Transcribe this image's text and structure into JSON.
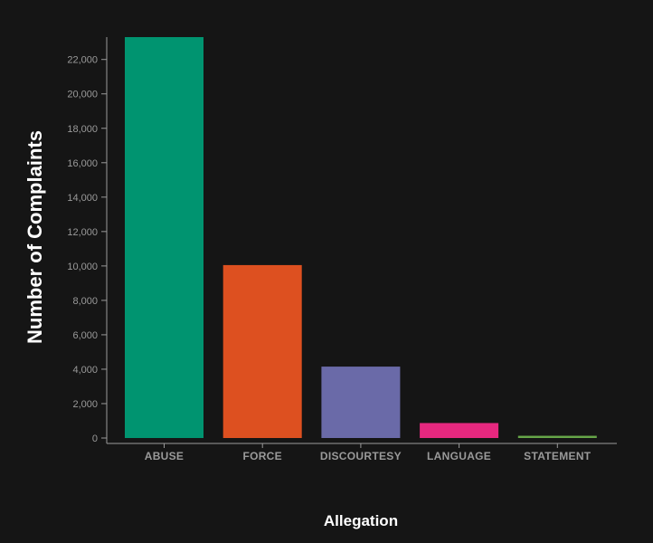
{
  "chart_data": {
    "type": "bar",
    "title": "",
    "xlabel": "Allegation",
    "ylabel": "Number of Complaints",
    "categories": [
      "ABUSE",
      "FORCE",
      "DISCOURTESY",
      "LANGUAGE",
      "STATEMENT"
    ],
    "values": [
      23300,
      10050,
      4150,
      870,
      130
    ],
    "colors": [
      "#009470",
      "#dd5020",
      "#6a6aa8",
      "#e6287f",
      "#66a548"
    ],
    "ylim": [
      0,
      23300
    ],
    "yticks": [
      0,
      2000,
      4000,
      6000,
      8000,
      10000,
      12000,
      14000,
      16000,
      18000,
      20000,
      22000
    ],
    "ytick_labels": [
      "0",
      "2,000",
      "4,000",
      "6,000",
      "8,000",
      "10,000",
      "12,000",
      "14,000",
      "16,000",
      "18,000",
      "20,000",
      "22,000"
    ],
    "grid": false,
    "legend": "none"
  },
  "theme": {
    "background": "#151515",
    "axis_color": "#9a9a9a",
    "title_color": "#ffffff"
  }
}
